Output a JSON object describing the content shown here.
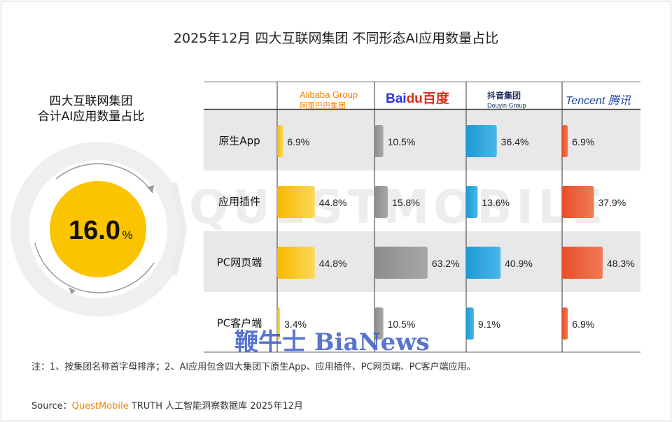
{
  "title": "2025年12月 四大互联网集团 不同形态AI应用数量占比",
  "left_title_line1": "四大互联网集团",
  "left_title_line2": "合计AI应用数量占比",
  "summary_value": "16.0",
  "summary_unit": "%",
  "summary_fraction": 0.16,
  "watermark": "QUESTMOBILE",
  "brands": {
    "alibaba": {
      "name": "Alibaba Group",
      "sub": "阿里巴巴集团"
    },
    "baidu": {
      "part1": "Bai",
      "part2": "du",
      "part3": "百度"
    },
    "douyin": {
      "name": "抖音集团",
      "en": "Douyin Group"
    },
    "tencent": {
      "name": "Tencent 腾讯"
    }
  },
  "bianews": "鞭牛士 BiaNews",
  "note": "注：1、按集团名称首字母排序；2、AI应用包含四大集团下原生App、应用插件、PC网页端、PC客户端应用。",
  "source_prefix": "Source：",
  "source_brand": "QuestMobile",
  "source_rest": " TRUTH 人工智能洞察数据库 2025年12月",
  "colors": {
    "alibaba": "#f9b800",
    "baidu": "#8c8c8c",
    "douyin": "#1e9ad6",
    "tencent": "#e84e2a",
    "row_band": "#e8e8e8",
    "circle": "#fbc400"
  },
  "chart_data": {
    "type": "bar",
    "categories": [
      "原生App",
      "应用插件",
      "PC网页端",
      "PC客户端"
    ],
    "groups": [
      "Alibaba Group",
      "Baidu",
      "抖音集团",
      "Tencent"
    ],
    "series": [
      {
        "values": [
          6.9,
          44.8,
          44.8,
          3.4
        ],
        "labels": [
          "6.9%",
          "44.8%",
          "44.8%",
          "3.4%"
        ]
      },
      {
        "values": [
          10.5,
          15.8,
          63.2,
          10.5
        ],
        "labels": [
          "10.5%",
          "15.8%",
          "63.2%",
          "10.5%"
        ]
      },
      {
        "values": [
          36.4,
          13.6,
          40.9,
          9.1
        ],
        "labels": [
          "36.4%",
          "13.6%",
          "40.9%",
          "9.1%"
        ]
      },
      {
        "values": [
          6.9,
          37.9,
          48.3,
          6.9
        ],
        "labels": [
          "6.9%",
          "37.9%",
          "48.3%",
          "6.9%"
        ]
      }
    ],
    "unit": "%"
  }
}
